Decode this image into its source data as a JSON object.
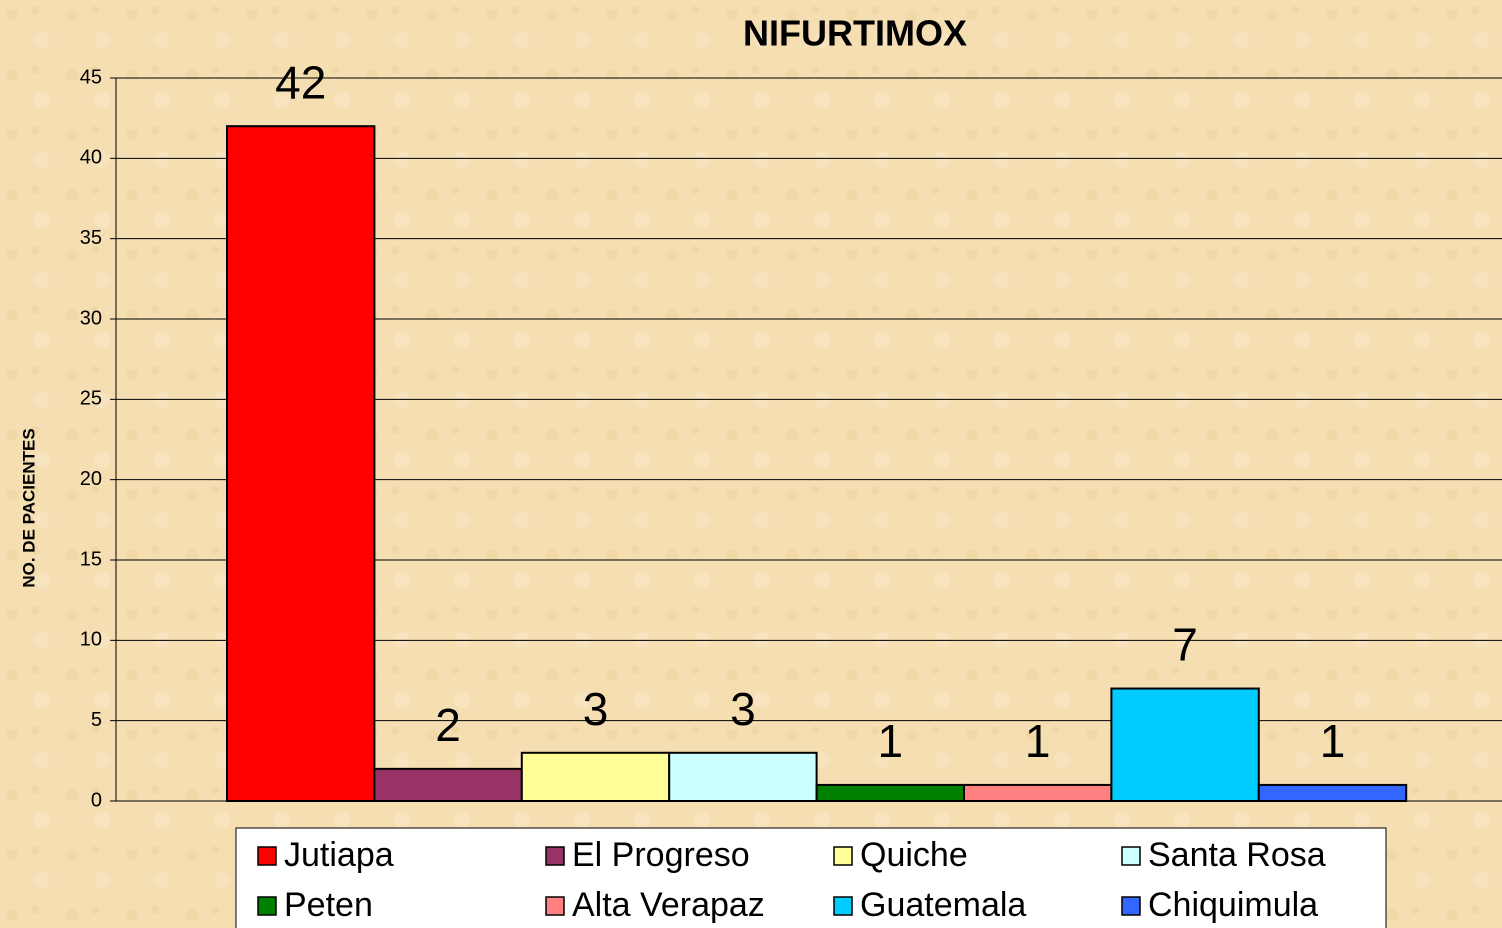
{
  "chart_data": {
    "type": "bar",
    "title": "NIFURTIMOX",
    "y_label": "NO. DE PACIENTES",
    "categories": [
      null
    ],
    "series": [
      {
        "name": "Jutiapa",
        "color": "#ff0000",
        "values": [
          42
        ]
      },
      {
        "name": "El Progreso",
        "color": "#993366",
        "values": [
          2
        ]
      },
      {
        "name": "Quiche",
        "color": "#ffff99",
        "values": [
          3
        ]
      },
      {
        "name": "Santa Rosa",
        "color": "#ccffff",
        "values": [
          3
        ]
      },
      {
        "name": "Peten",
        "color": "#008000",
        "values": [
          1
        ]
      },
      {
        "name": "Alta Verapaz",
        "color": "#ff8080",
        "values": [
          1
        ]
      },
      {
        "name": "Guatemala",
        "color": "#00ccff",
        "values": [
          7
        ]
      },
      {
        "name": "Chiquimula",
        "color": "#3366ff",
        "values": [
          1
        ]
      }
    ],
    "ylim": [
      0,
      45
    ],
    "yticks": [
      0,
      5,
      10,
      15,
      20,
      25,
      30,
      35,
      40,
      45
    ],
    "grid": true,
    "legend": "bottom"
  }
}
